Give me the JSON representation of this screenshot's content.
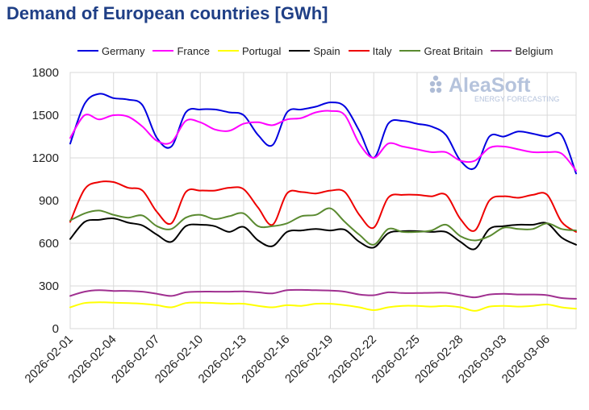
{
  "chart_data": {
    "type": "line",
    "title": "Demand of European countries [GWh]",
    "xlabel": "",
    "ylabel": "",
    "ylim": [
      0,
      1800
    ],
    "yticks": [
      0,
      300,
      600,
      900,
      1200,
      1500,
      1800
    ],
    "grid": true,
    "legend_position": "top",
    "x_tick_labels": [
      "2026-02-01",
      "2026-02-04",
      "2026-02-07",
      "2026-02-10",
      "2026-02-13",
      "2026-02-16",
      "2026-02-19",
      "2026-02-22",
      "2026-02-25",
      "2026-02-28",
      "2026-03-03",
      "2026-03-06"
    ],
    "x": [
      "2026-02-01",
      "2026-02-02",
      "2026-02-03",
      "2026-02-04",
      "2026-02-05",
      "2026-02-06",
      "2026-02-07",
      "2026-02-08",
      "2026-02-09",
      "2026-02-10",
      "2026-02-11",
      "2026-02-12",
      "2026-02-13",
      "2026-02-14",
      "2026-02-15",
      "2026-02-16",
      "2026-02-17",
      "2026-02-18",
      "2026-02-19",
      "2026-02-20",
      "2026-02-21",
      "2026-02-22",
      "2026-02-23",
      "2026-02-24",
      "2026-02-25",
      "2026-02-26",
      "2026-02-27",
      "2026-02-28",
      "2026-03-01",
      "2026-03-02",
      "2026-03-03",
      "2026-03-04",
      "2026-03-05",
      "2026-03-06",
      "2026-03-07",
      "2026-03-08"
    ],
    "series": [
      {
        "name": "Germany",
        "color": "#0000e0",
        "values": [
          1300,
          1580,
          1650,
          1620,
          1610,
          1570,
          1340,
          1280,
          1520,
          1540,
          1540,
          1520,
          1500,
          1360,
          1290,
          1520,
          1540,
          1560,
          1590,
          1560,
          1390,
          1200,
          1440,
          1460,
          1440,
          1420,
          1360,
          1180,
          1130,
          1350,
          1350,
          1385,
          1370,
          1350,
          1360,
          1090
        ]
      },
      {
        "name": "France",
        "color": "#ff00ff",
        "values": [
          1340,
          1500,
          1470,
          1500,
          1490,
          1420,
          1320,
          1310,
          1460,
          1450,
          1400,
          1390,
          1440,
          1450,
          1430,
          1470,
          1480,
          1520,
          1530,
          1500,
          1300,
          1200,
          1300,
          1280,
          1260,
          1240,
          1240,
          1180,
          1180,
          1270,
          1280,
          1260,
          1240,
          1240,
          1230,
          1110
        ]
      },
      {
        "name": "Portugal",
        "color": "#ffff00",
        "values": [
          150,
          180,
          185,
          183,
          180,
          175,
          165,
          150,
          180,
          183,
          180,
          175,
          175,
          160,
          150,
          165,
          160,
          175,
          175,
          165,
          150,
          130,
          150,
          160,
          160,
          155,
          160,
          150,
          125,
          155,
          160,
          155,
          160,
          170,
          150,
          140
        ]
      },
      {
        "name": "Spain",
        "color": "#000000",
        "values": [
          630,
          750,
          765,
          775,
          745,
          725,
          660,
          610,
          720,
          730,
          720,
          680,
          715,
          620,
          580,
          680,
          690,
          700,
          690,
          695,
          610,
          570,
          670,
          685,
          685,
          680,
          680,
          610,
          560,
          700,
          720,
          730,
          730,
          740,
          640,
          590
        ]
      },
      {
        "name": "Italy",
        "color": "#ee0000",
        "values": [
          750,
          980,
          1030,
          1030,
          990,
          970,
          820,
          740,
          960,
          970,
          970,
          990,
          980,
          850,
          730,
          950,
          960,
          950,
          970,
          960,
          800,
          710,
          920,
          940,
          940,
          930,
          940,
          770,
          690,
          900,
          930,
          920,
          940,
          940,
          750,
          680
        ]
      },
      {
        "name": "Great Britain",
        "color": "#5a8a30",
        "values": [
          760,
          810,
          830,
          800,
          780,
          795,
          720,
          700,
          780,
          800,
          770,
          790,
          810,
          720,
          720,
          740,
          790,
          800,
          845,
          750,
          660,
          590,
          700,
          680,
          680,
          690,
          730,
          650,
          620,
          650,
          710,
          700,
          700,
          740,
          700,
          690
        ]
      },
      {
        "name": "Belgium",
        "color": "#a03090",
        "values": [
          230,
          260,
          270,
          265,
          265,
          260,
          245,
          230,
          255,
          260,
          260,
          260,
          262,
          255,
          248,
          270,
          272,
          270,
          268,
          260,
          240,
          235,
          255,
          250,
          250,
          252,
          252,
          235,
          220,
          240,
          245,
          240,
          240,
          235,
          215,
          210
        ]
      }
    ]
  },
  "watermark": {
    "brand": "AleaSoft",
    "tagline": "ENERGY FORECASTING"
  }
}
